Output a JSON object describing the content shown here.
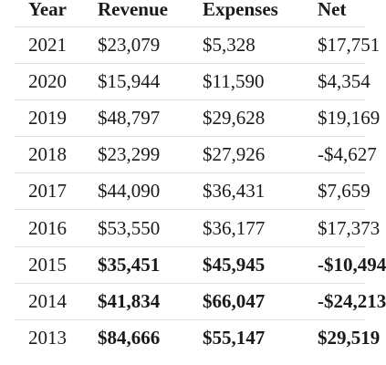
{
  "table": {
    "columns": [
      "Year",
      "Revenue",
      "Expenses",
      "Net"
    ],
    "rows": [
      [
        "2021",
        "$23,079",
        "$5,328",
        "$17,751"
      ],
      [
        "2020",
        "$15,944",
        "$11,590",
        "$4,354"
      ],
      [
        "2019",
        "$48,797",
        "$29,628",
        "$19,169"
      ],
      [
        "2018",
        "$23,299",
        "$27,926",
        "-$4,627"
      ],
      [
        "2017",
        "$44,090",
        "$36,431",
        "$7,659"
      ],
      [
        "2016",
        "$53,550",
        "$36,177",
        "$17,373"
      ],
      [
        "2015",
        "$35,451",
        "$45,945",
        "-$10,494"
      ],
      [
        "2014",
        "$41,834",
        "$66,047",
        "-$24,213"
      ],
      [
        "2013",
        "$84,666",
        "$55,147",
        "$29,519"
      ]
    ],
    "bold_rows": [
      6,
      7,
      8
    ]
  }
}
